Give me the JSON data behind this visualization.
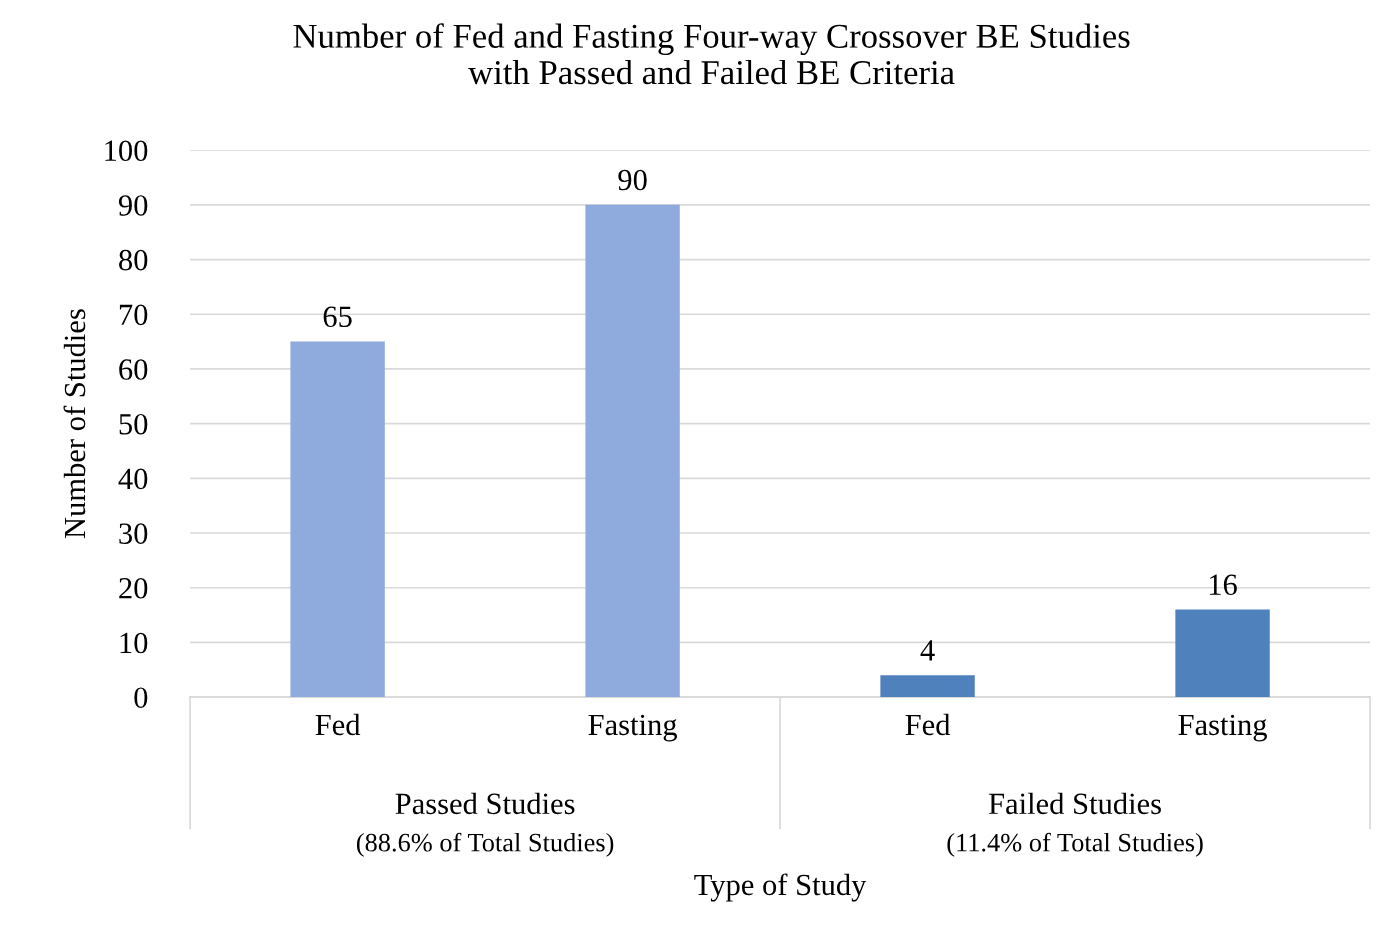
{
  "chart_data": {
    "type": "bar",
    "title": "Number of Fed and Fasting Four-way Crossover BE Studies\nwith Passed and Failed BE Criteria",
    "xlabel": "Type of Study",
    "ylabel": "Number of Studies",
    "categories": [
      "Fed",
      "Fasting",
      "Fed",
      "Fasting"
    ],
    "values": [
      65,
      90,
      4,
      16
    ],
    "colors": [
      "#8faadc",
      "#8faadc",
      "#4f81bd",
      "#4f81bd"
    ],
    "ylim": [
      0,
      100
    ],
    "yticks": [
      0,
      10,
      20,
      30,
      40,
      50,
      60,
      70,
      80,
      90,
      100
    ],
    "grid": "y",
    "data_labels": true,
    "annotations": [
      "Passed Studies",
      "(88.6% of Total Studies)",
      "Failed Studies",
      "(11.4% of Total Studies)"
    ]
  }
}
